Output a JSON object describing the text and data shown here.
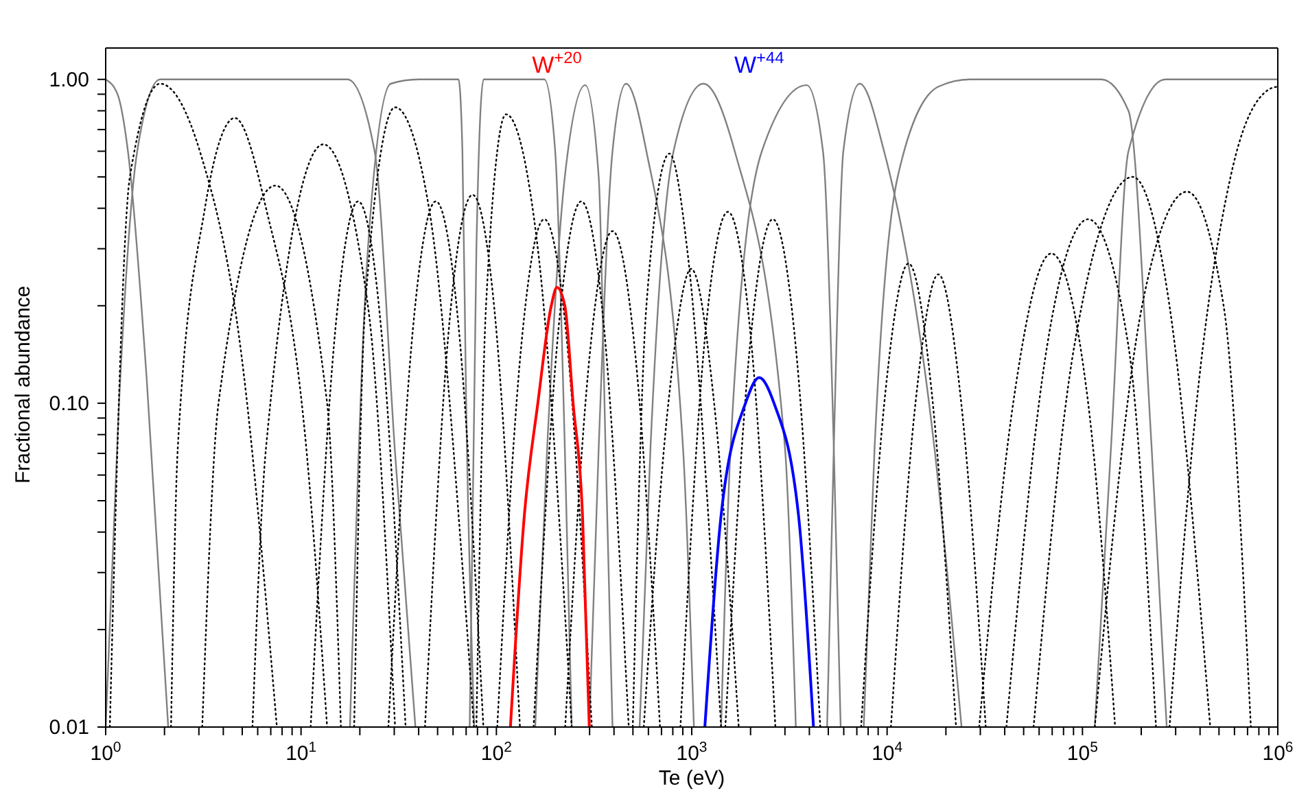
{
  "chart_data": {
    "type": "line",
    "xlabel": "Te (eV)",
    "ylabel": "Fractional abundance",
    "log": "xy",
    "xlim": [
      1,
      1000000
    ],
    "ylim": [
      0.01,
      1.25
    ],
    "xticks": [
      {
        "value": 1,
        "label": "10$^{0}$"
      },
      {
        "value": 2,
        "label": null
      },
      {
        "value": 3,
        "label": null
      },
      {
        "value": 4,
        "label": null
      },
      {
        "value": 5,
        "label": null
      },
      {
        "value": 6,
        "label": null
      },
      {
        "value": 7,
        "label": null
      },
      {
        "value": 8,
        "label": null
      },
      {
        "value": 9,
        "label": null
      },
      {
        "value": 10,
        "label": "10$^{1}$"
      },
      {
        "value": 20,
        "label": null
      },
      {
        "value": 30,
        "label": null
      },
      {
        "value": 40,
        "label": null
      },
      {
        "value": 50,
        "label": null
      },
      {
        "value": 60,
        "label": null
      },
      {
        "value": 70,
        "label": null
      },
      {
        "value": 80,
        "label": null
      },
      {
        "value": 90,
        "label": null
      },
      {
        "value": 100,
        "label": "10$^{2}$"
      },
      {
        "value": 200,
        "label": null
      },
      {
        "value": 300,
        "label": null
      },
      {
        "value": 400,
        "label": null
      },
      {
        "value": 500,
        "label": null
      },
      {
        "value": 600,
        "label": null
      },
      {
        "value": 700,
        "label": null
      },
      {
        "value": 800,
        "label": null
      },
      {
        "value": 900,
        "label": null
      },
      {
        "value": 1000,
        "label": "10$^{3}$"
      },
      {
        "value": 2000,
        "label": null
      },
      {
        "value": 3000,
        "label": null
      },
      {
        "value": 4000,
        "label": null
      },
      {
        "value": 5000,
        "label": null
      },
      {
        "value": 6000,
        "label": null
      },
      {
        "value": 7000,
        "label": null
      },
      {
        "value": 8000,
        "label": null
      },
      {
        "value": 9000,
        "label": null
      },
      {
        "value": 10000,
        "label": "10$^{4}$"
      },
      {
        "value": 20000,
        "label": null
      },
      {
        "value": 30000,
        "label": null
      },
      {
        "value": 40000,
        "label": null
      },
      {
        "value": 50000,
        "label": null
      },
      {
        "value": 60000,
        "label": null
      },
      {
        "value": 70000,
        "label": null
      },
      {
        "value": 80000,
        "label": null
      },
      {
        "value": 90000,
        "label": null
      },
      {
        "value": 100000,
        "label": "10$^{5}$"
      },
      {
        "value": 200000,
        "label": null
      },
      {
        "value": 300000,
        "label": null
      },
      {
        "value": 400000,
        "label": null
      },
      {
        "value": 500000,
        "label": null
      },
      {
        "value": 600000,
        "label": null
      },
      {
        "value": 700000,
        "label": null
      },
      {
        "value": 800000,
        "label": null
      },
      {
        "value": 900000,
        "label": null
      },
      {
        "value": 1000000,
        "label": "10$^{6}$"
      }
    ],
    "yticks": [
      {
        "value": 0.01,
        "label": "0.01"
      },
      {
        "value": 0.02,
        "label": null
      },
      {
        "value": 0.03,
        "label": null
      },
      {
        "value": 0.04,
        "label": null
      },
      {
        "value": 0.05,
        "label": null
      },
      {
        "value": 0.06,
        "label": null
      },
      {
        "value": 0.07,
        "label": null
      },
      {
        "value": 0.08,
        "label": null
      },
      {
        "value": 0.09,
        "label": null
      },
      {
        "value": 0.1,
        "label": "0.10"
      },
      {
        "value": 0.2,
        "label": null
      },
      {
        "value": 0.3,
        "label": null
      },
      {
        "value": 0.4,
        "label": null
      },
      {
        "value": 0.5,
        "label": null
      },
      {
        "value": 0.6,
        "label": null
      },
      {
        "value": 0.7,
        "label": null
      },
      {
        "value": 0.8,
        "label": null
      },
      {
        "value": 0.9,
        "label": null
      },
      {
        "value": 1,
        "label": "1.00"
      }
    ],
    "series": [
      {
        "color": "#808080",
        "line_style": "solid",
        "x": [
          1,
          1.15,
          1.3,
          1.62,
          2.09
        ],
        "values": [
          1.0,
          0.9,
          0.6,
          0.12,
          0.01
        ]
      },
      {
        "color": "#808080",
        "line_style": "solid",
        "x": [
          1.0,
          1.17,
          1.45,
          1.9,
          17.3,
          23.8,
          30.3,
          38.5
        ],
        "values": [
          0.01,
          0.1,
          0.6,
          1.0,
          1.0,
          0.6,
          0.07,
          0.01
        ]
      },
      {
        "color": "#808080",
        "line_style": "solid",
        "x": [
          17.8,
          22,
          28.8,
          40,
          64,
          67,
          70,
          77
        ],
        "values": [
          0.01,
          0.3,
          0.97,
          1.0,
          1.0,
          0.6,
          0.1,
          0.01
        ]
      },
      {
        "color": "#808080",
        "line_style": "solid",
        "x": [
          73,
          79,
          86,
          176,
          200,
          224,
          243
        ],
        "values": [
          0.01,
          0.3,
          1.0,
          1.0,
          0.6,
          0.073,
          0.01
        ]
      },
      {
        "color": "#808080",
        "line_style": "solid",
        "x": [
          158,
          182,
          224,
          285,
          334,
          362,
          393
        ],
        "values": [
          0.01,
          0.073,
          0.5,
          0.96,
          0.5,
          0.073,
          0.01
        ]
      },
      {
        "color": "#808080",
        "line_style": "solid",
        "x": [
          299,
          334,
          393,
          461,
          586,
          902,
          1026
        ],
        "values": [
          0.01,
          0.073,
          0.6,
          0.97,
          0.6,
          0.073,
          0.01
        ]
      },
      {
        "color": "#808080",
        "line_style": "solid",
        "x": [
          541,
          615,
          807,
          1148,
          1660,
          3000,
          3410
        ],
        "values": [
          0.01,
          0.073,
          0.6,
          0.97,
          0.6,
          0.073,
          0.01
        ]
      },
      {
        "color": "#808080",
        "line_style": "solid",
        "x": [
          1413,
          1581,
          2285,
          3874,
          4697,
          5336,
          5785
        ],
        "values": [
          0.01,
          0.073,
          0.6,
          0.96,
          0.6,
          0.073,
          0.01
        ]
      },
      {
        "color": "#808080",
        "line_style": "solid",
        "x": [
          4930,
          5336,
          5970,
          7240,
          9650,
          17460,
          24050
        ],
        "values": [
          0.01,
          0.073,
          0.6,
          0.97,
          0.6,
          0.073,
          0.01
        ]
      },
      {
        "color": "#808080",
        "line_style": "solid",
        "x": [
          7590,
          8630,
          11330,
          18320,
          26480,
          125000,
          172000,
          226000,
          270000
        ],
        "values": [
          0.01,
          0.073,
          0.5,
          0.95,
          1.0,
          1.0,
          0.8,
          0.073,
          0.01
        ]
      },
      {
        "color": "#808080",
        "line_style": "solid",
        "x": [
          115600,
          140000,
          172000,
          266000,
          1000000
        ],
        "values": [
          0.01,
          0.073,
          0.6,
          1.0,
          1.0
        ]
      },
      {
        "color": "#000000",
        "line_style": "dotted",
        "x": [
          1.05,
          1.33,
          1.9,
          3.06,
          4.96,
          7.52
        ],
        "values": [
          0.01,
          0.5,
          0.97,
          0.59,
          0.14,
          0.01
        ]
      },
      {
        "color": "#000000",
        "line_style": "dotted",
        "x": [
          2.16,
          2.34,
          3.22,
          4.58,
          6.62,
          10.7,
          13.6
        ],
        "values": [
          0.01,
          0.073,
          0.4,
          0.76,
          0.4,
          0.07,
          0.01
        ]
      },
      {
        "color": "#000000",
        "line_style": "dotted",
        "x": [
          3.12,
          3.78,
          7.4,
          13.6,
          16.0
        ],
        "values": [
          0.01,
          0.1,
          0.47,
          0.1,
          0.01
        ]
      },
      {
        "color": "#000000",
        "line_style": "dotted",
        "x": [
          5.64,
          6.62,
          13.0,
          22.0,
          30.3
        ],
        "values": [
          0.01,
          0.073,
          0.63,
          0.2,
          0.01
        ]
      },
      {
        "color": "#000000",
        "line_style": "dotted",
        "x": [
          11.2,
          15,
          19.6,
          25.7,
          34.3
        ],
        "values": [
          0.01,
          0.17,
          0.42,
          0.17,
          0.01
        ]
      },
      {
        "color": "#000000",
        "line_style": "dotted",
        "x": [
          18.7,
          21.3,
          30.3,
          45.2,
          67.4,
          76.7
        ],
        "values": [
          0.01,
          0.2,
          0.82,
          0.4,
          0.03,
          0.01
        ]
      },
      {
        "color": "#000000",
        "line_style": "dotted",
        "x": [
          28,
          37.4,
          49,
          64.2,
          85.8
        ],
        "values": [
          0.01,
          0.17,
          0.42,
          0.17,
          0.01
        ]
      },
      {
        "color": "#000000",
        "line_style": "dotted",
        "x": [
          43.1,
          57.6,
          75.5,
          98.9,
          132
        ],
        "values": [
          0.01,
          0.18,
          0.44,
          0.18,
          0.01
        ]
      },
      {
        "color": "#000000",
        "line_style": "dotted",
        "x": [
          79,
          88.5,
          112,
          163,
          243
        ],
        "values": [
          0.01,
          0.2,
          0.78,
          0.3,
          0.01
        ]
      },
      {
        "color": "#000000",
        "line_style": "dotted",
        "x": [
          101,
          134,
          176,
          231,
          308
        ],
        "values": [
          0.01,
          0.15,
          0.37,
          0.15,
          0.01
        ]
      },
      {
        "color": "#000000",
        "line_style": "dotted",
        "x": [
          155,
          208,
          272,
          356,
          476
        ],
        "values": [
          0.01,
          0.17,
          0.42,
          0.17,
          0.01
        ]
      },
      {
        "color": "#000000",
        "line_style": "dotted",
        "x": [
          225,
          300,
          393,
          515,
          688
        ],
        "values": [
          0.01,
          0.14,
          0.34,
          0.14,
          0.01
        ]
      },
      {
        "color": "#000000",
        "line_style": "dotted",
        "x": [
          499,
          586,
          769,
          947,
          1413
        ],
        "values": [
          0.01,
          0.2,
          0.59,
          0.3,
          0.01
        ]
      },
      {
        "color": "#000000",
        "line_style": "dotted",
        "x": [
          568,
          759,
          994,
          1302,
          1740
        ],
        "values": [
          0.01,
          0.1,
          0.26,
          0.1,
          0.01
        ]
      },
      {
        "color": "#000000",
        "line_style": "dotted",
        "x": [
          875,
          1169,
          1531,
          2006,
          2680
        ],
        "values": [
          0.01,
          0.16,
          0.39,
          0.16,
          0.01
        ]
      },
      {
        "color": "#000000",
        "line_style": "dotted",
        "x": [
          1486,
          1985,
          2600,
          3406,
          4550
        ],
        "values": [
          0.01,
          0.15,
          0.37,
          0.15,
          0.01
        ]
      },
      {
        "color": "#000000",
        "line_style": "dotted",
        "x": [
          7360,
          9830,
          12880,
          16870,
          22540
        ],
        "values": [
          0.01,
          0.11,
          0.27,
          0.11,
          0.01
        ]
      },
      {
        "color": "#000000",
        "line_style": "dotted",
        "x": [
          10460,
          13970,
          18300,
          23970,
          32000
        ],
        "values": [
          0.01,
          0.1,
          0.25,
          0.1,
          0.01
        ]
      },
      {
        "color": "#000000",
        "line_style": "dotted",
        "x": [
          29600,
          44200,
          69200,
          107000,
          147000
        ],
        "values": [
          0.01,
          0.1,
          0.29,
          0.1,
          0.01
        ]
      },
      {
        "color": "#000000",
        "line_style": "dotted",
        "x": [
          40800,
          65900,
          107000,
          172000,
          238000
        ],
        "values": [
          0.01,
          0.15,
          0.37,
          0.15,
          0.01
        ]
      },
      {
        "color": "#000000",
        "line_style": "dotted",
        "x": [
          56200,
          90800,
          181000,
          279000,
          451000
        ],
        "values": [
          0.01,
          0.15,
          0.5,
          0.2,
          0.01
        ]
      },
      {
        "color": "#000000",
        "line_style": "dotted",
        "x": [
          115600,
          202000,
          343000,
          528000,
          728000
        ],
        "values": [
          0.01,
          0.2,
          0.45,
          0.2,
          0.01
        ]
      },
      {
        "color": "#000000",
        "line_style": "dotted",
        "x": [
          279000,
          384000,
          573000,
          897000,
          1000000
        ],
        "values": [
          0.01,
          0.1,
          0.5,
          0.93,
          0.95
        ]
      },
      {
        "name": "W$^{+20}$",
        "color": "#ff0000",
        "line_style": "solid",
        "x": [
          118,
          139,
          163,
          191,
          204,
          224,
          247,
          276,
          299
        ],
        "values": [
          0.01,
          0.045,
          0.1,
          0.2,
          0.228,
          0.2,
          0.1,
          0.045,
          0.01
        ]
      },
      {
        "name": "W$^{+44}$",
        "color": "#0000ff",
        "line_style": "solid",
        "x": [
          1167,
          1413,
          1884,
          2213,
          2637,
          3521,
          4200
        ],
        "values": [
          0.01,
          0.045,
          0.1,
          0.12,
          0.1,
          0.045,
          0.01
        ]
      }
    ]
  }
}
